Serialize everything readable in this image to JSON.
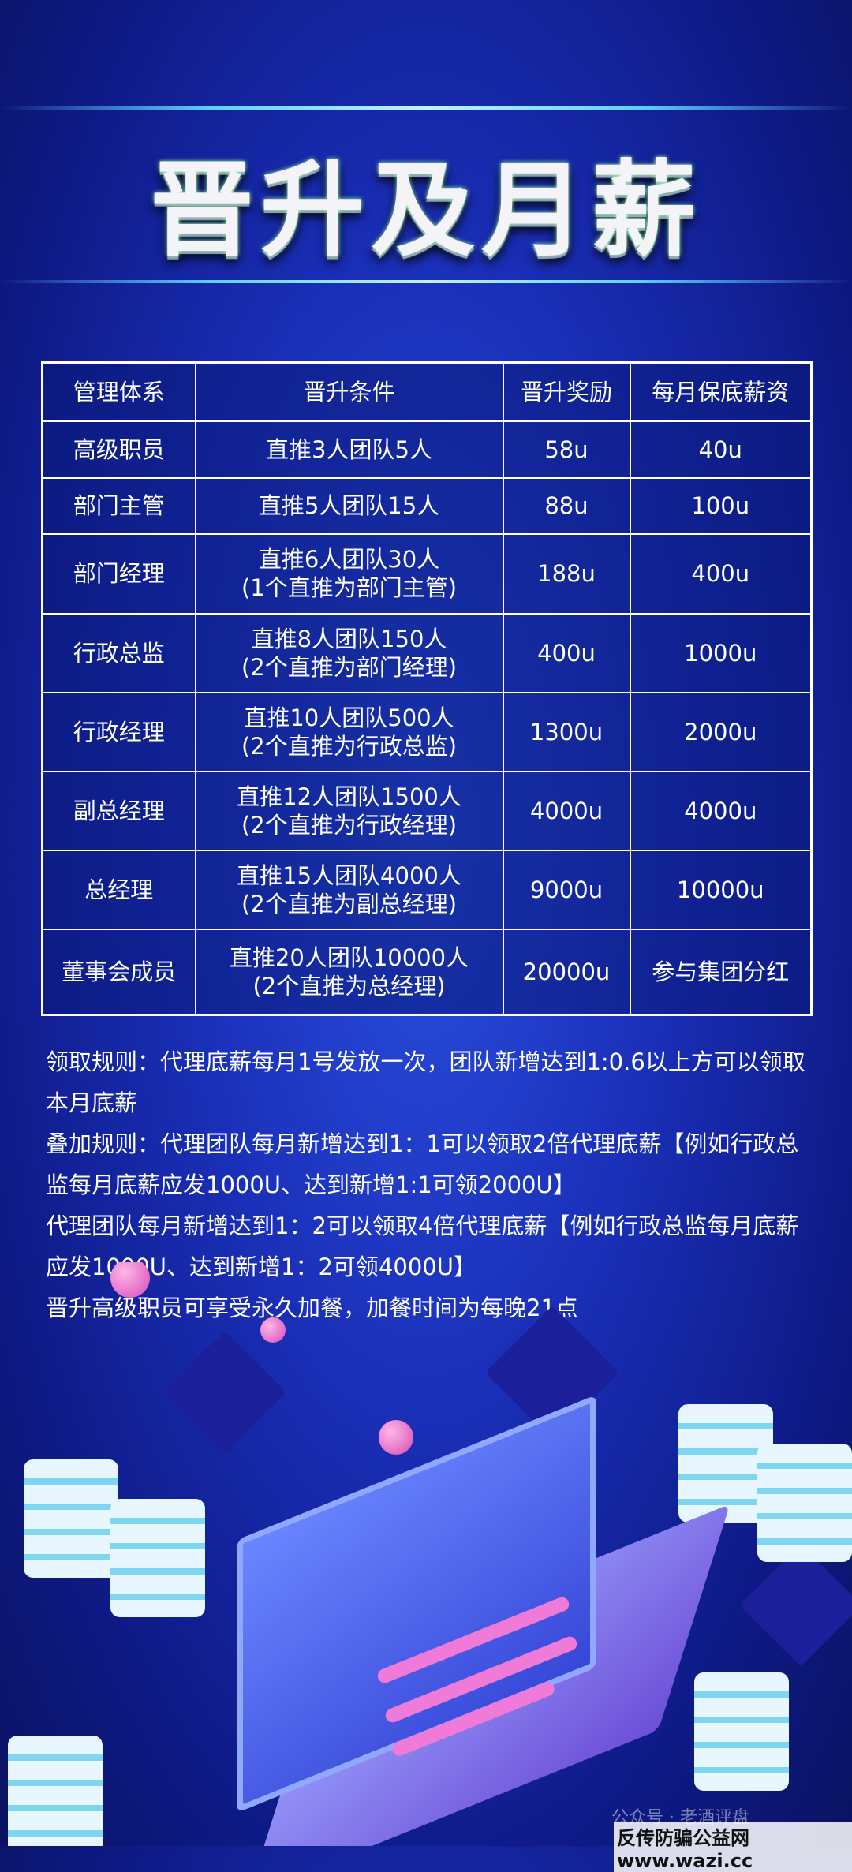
{
  "title": "晋升及月薪",
  "table": {
    "headers": [
      "管理体系",
      "晋升条件",
      "晋升奖励",
      "每月保底薪资"
    ],
    "rows": [
      {
        "level": "高级职员",
        "condition": [
          "直推3人团队5人"
        ],
        "reward": "58u",
        "salary": "40u"
      },
      {
        "level": "部门主管",
        "condition": [
          "直推5人团队15人"
        ],
        "reward": "88u",
        "salary": "100u"
      },
      {
        "level": "部门经理",
        "condition": [
          "直推6人团队30人",
          "(1个直推为部门主管)"
        ],
        "reward": "188u",
        "salary": "400u"
      },
      {
        "level": "行政总监",
        "condition": [
          "直推8人团队150人",
          "(2个直推为部门经理)"
        ],
        "reward": "400u",
        "salary": "1000u"
      },
      {
        "level": "行政经理",
        "condition": [
          "直推10人团队500人",
          "(2个直推为行政总监)"
        ],
        "reward": "1300u",
        "salary": "2000u"
      },
      {
        "level": "副总经理",
        "condition": [
          "直推12人团队1500人",
          "(2个直推为行政经理)"
        ],
        "reward": "4000u",
        "salary": "4000u"
      },
      {
        "level": "总经理",
        "condition": [
          "直推15人团队4000人",
          "(2个直推为副总经理)"
        ],
        "reward": "9000u",
        "salary": "10000u"
      },
      {
        "level": "董事会成员",
        "condition": [
          "直推20人团队10000人",
          "(2个直推为总经理)"
        ],
        "reward": "20000u",
        "salary": "参与集团分红"
      }
    ]
  },
  "rules": [
    "领取规则：代理底薪每月1号发放一次，团队新增达到1:0.6以上方可以领取本月底薪",
    "叠加规则：代理团队每月新增达到1：1可以领取2倍代理底薪【例如行政总监每月底薪应发1000U、达到新增1:1可领2000U】",
    "代理团队每月新增达到1：2可以领取4倍代理底薪【例如行政总监每月底薪应发1000U、达到新增1：2可领4000U】",
    "晋升高级职员可享受永久加餐，加餐时间为每晚21点"
  ],
  "watermarks": {
    "account": "公众号 · 老酒评盘",
    "site": "反传防骗公益网 www.wazi.cc"
  }
}
